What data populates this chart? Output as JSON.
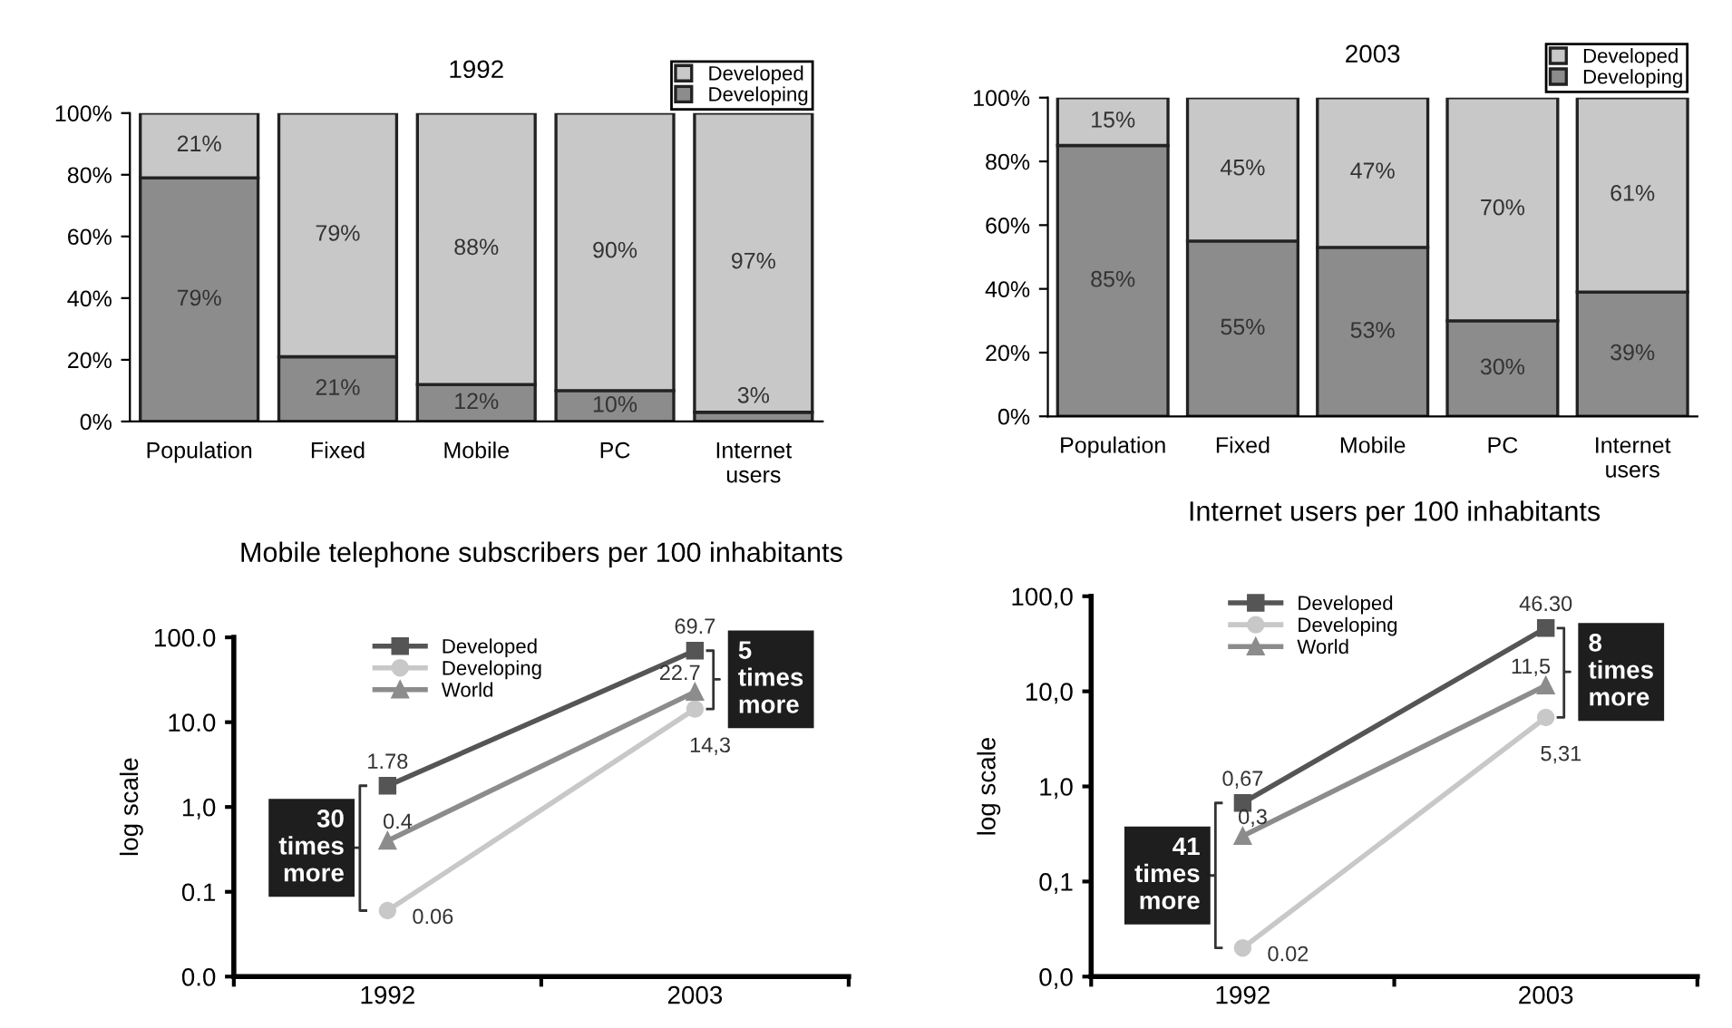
{
  "chart_data": [
    {
      "type": "bar",
      "title": "1992",
      "stacked": true,
      "categories": [
        "Population",
        "Fixed",
        "Mobile",
        "PC",
        "Internet\nusers"
      ],
      "ylim": [
        0,
        100
      ],
      "yticks": [
        {
          "value": 0,
          "label": "0%"
        },
        {
          "value": 20,
          "label": "20%"
        },
        {
          "value": 40,
          "label": "40%"
        },
        {
          "value": 60,
          "label": "60%"
        },
        {
          "value": 80,
          "label": "80%"
        },
        {
          "value": 100,
          "label": "100%"
        }
      ],
      "legend": "top right",
      "grid": false,
      "series": [
        {
          "name": "Developing",
          "color": "#8c8c8c",
          "values": [
            79,
            21,
            12,
            10,
            3
          ],
          "value_labels": [
            "79%",
            "21%",
            "12%",
            "10%",
            "3%"
          ]
        },
        {
          "name": "Developed",
          "color": "#c8c8c8",
          "values": [
            21,
            79,
            88,
            90,
            97
          ],
          "value_labels": [
            "21%",
            "79%",
            "88%",
            "90%",
            "97%"
          ]
        }
      ]
    },
    {
      "type": "bar",
      "title": "2003",
      "stacked": true,
      "categories": [
        "Population",
        "Fixed",
        "Mobile",
        "PC",
        "Internet\nusers"
      ],
      "ylim": [
        0,
        100
      ],
      "yticks": [
        {
          "value": 0,
          "label": "0%"
        },
        {
          "value": 20,
          "label": "20%"
        },
        {
          "value": 40,
          "label": "40%"
        },
        {
          "value": 60,
          "label": "60%"
        },
        {
          "value": 80,
          "label": "80%"
        },
        {
          "value": 100,
          "label": "100%"
        }
      ],
      "legend": "top right",
      "grid": false,
      "series": [
        {
          "name": "Developing",
          "color": "#8c8c8c",
          "values": [
            85,
            55,
            53,
            30,
            39
          ],
          "value_labels": [
            "85%",
            "55%",
            "53%",
            "30%",
            "39%"
          ]
        },
        {
          "name": "Developed",
          "color": "#c8c8c8",
          "values": [
            15,
            45,
            47,
            70,
            61
          ],
          "value_labels": [
            "15%",
            "45%",
            "47%",
            "70%",
            "61%"
          ]
        }
      ]
    },
    {
      "type": "line",
      "title": "Mobile telephone subscribers per 100 inhabitants",
      "ylabel": "log scale",
      "log": true,
      "categories": [
        "1992",
        "2003"
      ],
      "ylim": [
        0.01,
        100
      ],
      "yticks": [
        {
          "value": 0.01,
          "label": "0.0"
        },
        {
          "value": 0.1,
          "label": "0.1"
        },
        {
          "value": 1,
          "label": "1,0"
        },
        {
          "value": 10,
          "label": "10.0"
        },
        {
          "value": 100,
          "label": "100.0"
        }
      ],
      "legend": "top left",
      "grid": false,
      "line_style": "solid",
      "annotations": [
        {
          "text": "30\ntimes\nmore",
          "x": "1992",
          "y": 0.33
        },
        {
          "text": "5\ntimes\nmore",
          "x": "2003",
          "y": 32
        }
      ],
      "series": [
        {
          "name": "Developed",
          "color": "#555555",
          "marker": "square",
          "values": [
            1.78,
            69.7
          ],
          "value_labels": [
            "1.78",
            "69.7"
          ]
        },
        {
          "name": "Developing",
          "color": "#c8c8c8",
          "marker": "circle",
          "values": [
            0.06,
            14.3
          ],
          "value_labels": [
            "0.06",
            "14,3"
          ]
        },
        {
          "name": "World",
          "color": "#8c8c8c",
          "marker": "triangle",
          "values": [
            0.4,
            22.7
          ],
          "value_labels": [
            "0.4",
            "22.7"
          ]
        }
      ]
    },
    {
      "type": "line",
      "title": "Internet users per 100 inhabitants",
      "ylabel": "log scale",
      "log": true,
      "categories": [
        "1992",
        "2003"
      ],
      "ylim": [
        0.01,
        100
      ],
      "yticks": [
        {
          "value": 0.01,
          "label": "0,0"
        },
        {
          "value": 0.1,
          "label": "0,1"
        },
        {
          "value": 1,
          "label": "1,0"
        },
        {
          "value": 10,
          "label": "10,0"
        },
        {
          "value": 100,
          "label": "100,0"
        }
      ],
      "legend": "top left",
      "grid": false,
      "line_style": "solid",
      "annotations": [
        "41\ntimes\nmore",
        {
          "text": "8\ntimes\nmore",
          "x": "2003",
          "y": 16
        }
      ],
      "series": [
        {
          "name": "Developed",
          "color": "#555555",
          "marker": "square",
          "values": [
            0.67,
            46.3
          ],
          "value_labels": [
            "0,67",
            "46.30"
          ]
        },
        {
          "name": "Developing",
          "color": "#c8c8c8",
          "marker": "circle",
          "values": [
            0.02,
            5.31
          ],
          "value_labels": [
            "0.02",
            "5,31"
          ]
        },
        {
          "name": "World",
          "color": "#8c8c8c",
          "marker": "triangle",
          "values": [
            0.3,
            11.5
          ],
          "value_labels": [
            "0,3",
            "11,5"
          ]
        }
      ]
    }
  ]
}
